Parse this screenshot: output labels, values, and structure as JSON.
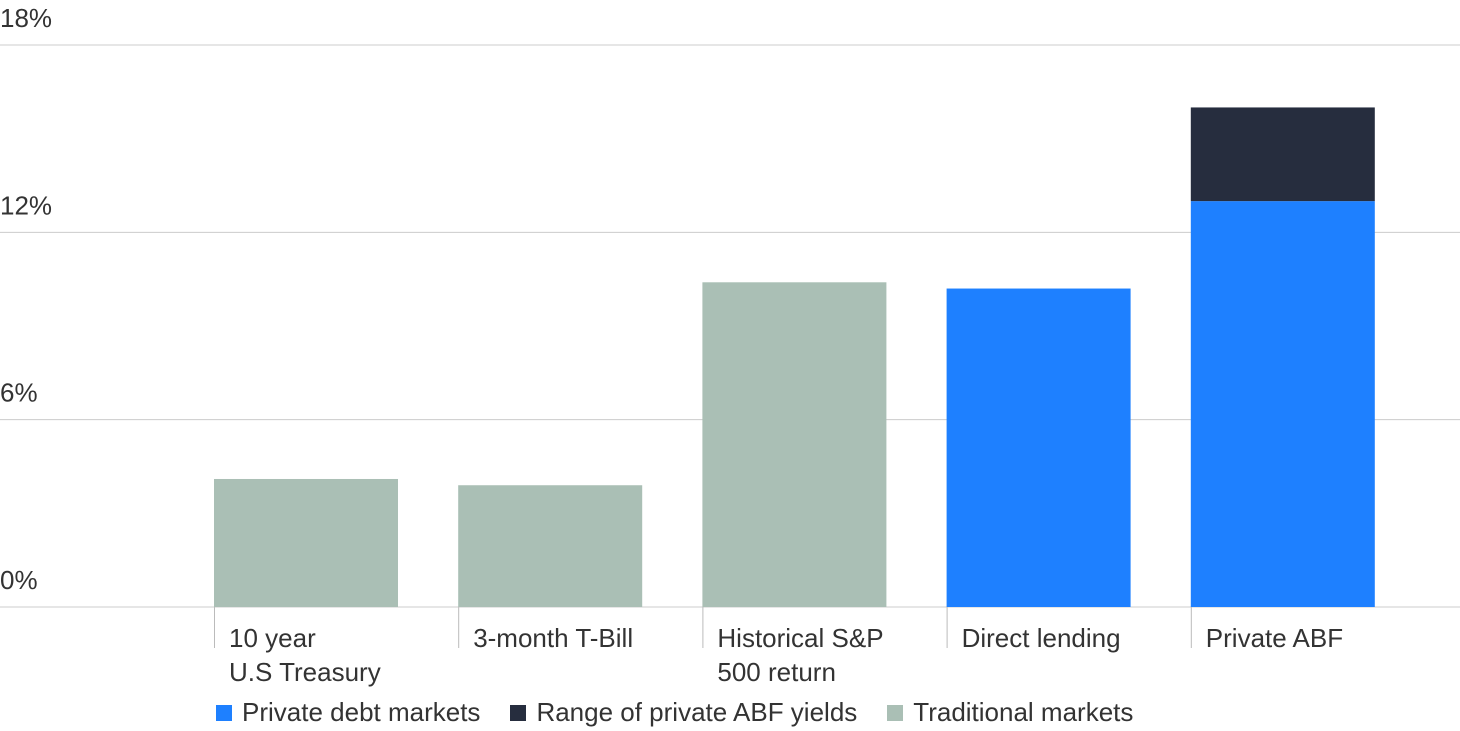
{
  "chart_data": {
    "type": "bar",
    "stacked": true,
    "categories": [
      [
        "10 year",
        "U.S Treasury"
      ],
      [
        "3-month T-Bill"
      ],
      [
        "Historical S&P",
        "500 return"
      ],
      [
        "Direct lending"
      ],
      [
        "Private ABF"
      ]
    ],
    "series": [
      {
        "name": "Traditional markets",
        "color": "#AABFB5",
        "values": [
          4.1,
          3.9,
          10.4,
          0,
          0
        ]
      },
      {
        "name": "Private debt markets",
        "color": "#1E80FF",
        "values": [
          0,
          0,
          0,
          10.2,
          13.0
        ]
      },
      {
        "name": "Range of private ABF yields",
        "color": "#262D3E",
        "values": [
          0,
          0,
          0,
          0,
          3.0
        ]
      }
    ],
    "yticks": [
      0,
      6,
      12,
      18
    ],
    "ytick_labels": [
      "0%",
      "6%",
      "12%",
      "18%"
    ],
    "ylim": [
      0,
      18
    ],
    "grid": true,
    "title": "",
    "xlabel": "",
    "ylabel": "",
    "legend": {
      "position": "bottom-left",
      "order": [
        "Private debt markets",
        "Range of private ABF yields",
        "Traditional markets"
      ]
    }
  }
}
